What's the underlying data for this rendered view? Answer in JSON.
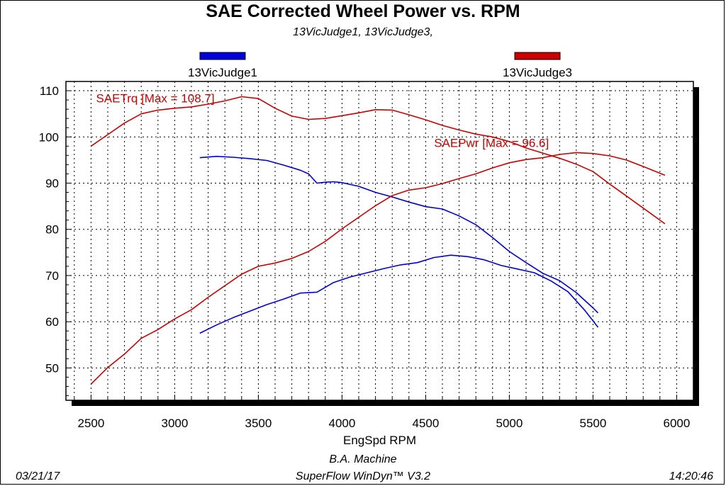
{
  "title": "SAE Corrected Wheel Power vs. RPM",
  "subtitle": "13VicJudge1, 13VicJudge3,",
  "footer": {
    "shop": "B.A. Machine",
    "software": "SuperFlow WinDyn™ V3.2",
    "date": "03/21/17",
    "time": "14:20:46"
  },
  "colors": {
    "run1": "#0000dd",
    "run3": "#cc0000",
    "grid": "#000000",
    "shadow": "#000000"
  },
  "chart_data": {
    "type": "line",
    "title": "SAE Corrected Wheel Power vs. RPM",
    "xlabel": "EngSpd RPM",
    "ylabel": "",
    "xlim": [
      2350,
      6100
    ],
    "ylim": [
      43,
      112
    ],
    "x_ticks": [
      2500,
      3000,
      3500,
      4000,
      4500,
      5000,
      5500,
      6000
    ],
    "y_ticks": [
      50,
      60,
      70,
      80,
      90,
      100,
      110
    ],
    "grid": true,
    "legend_position": "top",
    "legend": [
      {
        "name": "13VicJudge1",
        "color": "#0000dd"
      },
      {
        "name": "13VicJudge3",
        "color": "#cc0000"
      }
    ],
    "annotations": [
      {
        "text": "SAETrq [Max = 108.7]",
        "x": 2530,
        "y": 107.5,
        "color": "#cc0000"
      },
      {
        "text": "SAEPwr [Max = 96.6]",
        "x": 4550,
        "y": 97.8,
        "color": "#cc0000"
      }
    ],
    "series": [
      {
        "name": "13VicJudge1",
        "measure": "SAETrq",
        "color": "#0000dd",
        "x": [
          3150,
          3250,
          3350,
          3450,
          3550,
          3650,
          3750,
          3800,
          3850,
          3900,
          3950,
          4000,
          4100,
          4200,
          4300,
          4400,
          4500,
          4600,
          4700,
          4800,
          4900,
          5000,
          5100,
          5200,
          5300,
          5400,
          5500,
          5530
        ],
        "y": [
          95.5,
          95.8,
          95.6,
          95.3,
          94.9,
          93.9,
          92.8,
          92.0,
          90.0,
          90.2,
          90.3,
          90.1,
          89.3,
          88.0,
          87.0,
          85.9,
          84.9,
          84.4,
          82.9,
          81.0,
          78.2,
          75.2,
          72.8,
          70.5,
          68.9,
          66.3,
          63.0,
          61.9
        ]
      },
      {
        "name": "13VicJudge1",
        "measure": "SAEPwr",
        "color": "#0000dd",
        "x": [
          3150,
          3250,
          3350,
          3450,
          3550,
          3650,
          3750,
          3850,
          3950,
          4050,
          4150,
          4250,
          4350,
          4450,
          4550,
          4650,
          4750,
          4850,
          4950,
          5050,
          5150,
          5250,
          5350,
          5450,
          5530
        ],
        "y": [
          57.5,
          59.3,
          60.9,
          62.3,
          63.7,
          64.9,
          66.2,
          66.4,
          68.5,
          69.7,
          70.6,
          71.5,
          72.3,
          72.8,
          73.9,
          74.4,
          74.1,
          73.4,
          72.2,
          71.4,
          70.6,
          68.8,
          66.5,
          62.5,
          58.8
        ]
      },
      {
        "name": "13VicJudge3",
        "measure": "SAETrq",
        "color": "#cc0000",
        "x": [
          2500,
          2600,
          2700,
          2800,
          2900,
          3000,
          3100,
          3200,
          3300,
          3400,
          3500,
          3600,
          3700,
          3800,
          3900,
          4000,
          4100,
          4200,
          4300,
          4400,
          4500,
          4600,
          4700,
          4800,
          4900,
          5000,
          5100,
          5200,
          5300,
          5400,
          5500,
          5600,
          5700,
          5800,
          5930
        ],
        "y": [
          98.0,
          100.5,
          103.0,
          105.0,
          105.8,
          106.2,
          106.5,
          107.1,
          107.8,
          108.7,
          108.3,
          106.2,
          104.5,
          103.8,
          104.0,
          104.6,
          105.2,
          105.9,
          105.8,
          104.8,
          103.7,
          102.5,
          101.5,
          100.6,
          100.0,
          99.0,
          97.6,
          96.5,
          95.4,
          94.1,
          92.5,
          89.8,
          87.2,
          84.6,
          81.2
        ]
      },
      {
        "name": "13VicJudge3",
        "measure": "SAEPwr",
        "color": "#cc0000",
        "x": [
          2500,
          2600,
          2700,
          2800,
          2900,
          3000,
          3100,
          3200,
          3300,
          3400,
          3500,
          3600,
          3700,
          3800,
          3900,
          4000,
          4100,
          4200,
          4300,
          4400,
          4500,
          4600,
          4700,
          4800,
          4900,
          5000,
          5100,
          5200,
          5300,
          5400,
          5500,
          5600,
          5700,
          5800,
          5930
        ],
        "y": [
          46.5,
          50.1,
          53.0,
          56.4,
          58.3,
          60.6,
          62.6,
          65.3,
          67.8,
          70.3,
          72.0,
          72.7,
          73.7,
          75.2,
          77.4,
          80.1,
          82.6,
          85.1,
          87.3,
          88.5,
          89.0,
          89.9,
          91.0,
          92.0,
          93.3,
          94.4,
          95.1,
          95.5,
          96.2,
          96.6,
          96.4,
          95.9,
          95.0,
          93.6,
          91.7
        ]
      }
    ]
  }
}
